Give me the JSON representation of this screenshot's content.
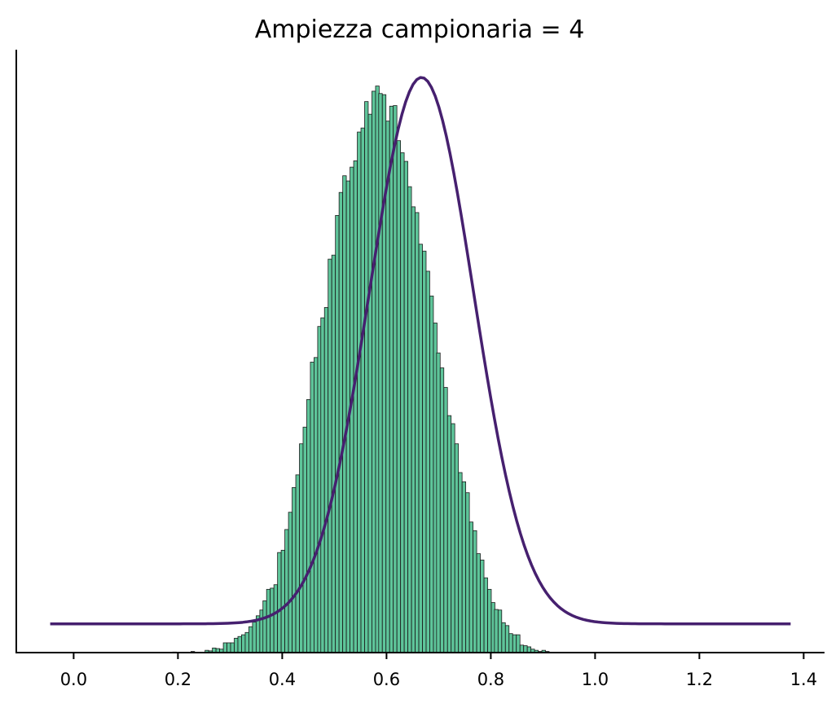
{
  "chart_data": {
    "type": "bar",
    "title": "Ampiezza campionaria = 4",
    "xlabel": "",
    "ylabel": "",
    "xlim": [
      -0.11,
      1.44
    ],
    "xticks": [
      0.0,
      0.2,
      0.4,
      0.6,
      0.8,
      1.0,
      1.2,
      1.4
    ],
    "x_tick_labels": [
      "0.0",
      "0.2",
      "0.4",
      "0.6",
      "0.8",
      "1.0",
      "1.2",
      "1.4"
    ],
    "y_axis_ticks_shown": false,
    "grid": false,
    "legend": "none",
    "histogram": {
      "bin_width": 0.0069,
      "bin_starts": [
        0.19,
        0.197,
        0.204,
        0.211,
        0.218,
        0.225,
        0.232,
        0.239,
        0.246,
        0.252,
        0.259,
        0.266,
        0.273,
        0.28,
        0.287,
        0.294,
        0.301,
        0.308,
        0.315,
        0.322,
        0.329,
        0.336,
        0.343,
        0.35,
        0.357,
        0.363,
        0.37,
        0.377,
        0.384,
        0.391,
        0.398,
        0.405,
        0.412,
        0.419,
        0.426,
        0.433,
        0.44,
        0.447,
        0.454,
        0.461,
        0.468,
        0.474,
        0.481,
        0.488,
        0.495,
        0.502,
        0.509,
        0.516,
        0.523,
        0.53,
        0.537,
        0.544,
        0.551,
        0.558,
        0.565,
        0.572,
        0.579,
        0.585,
        0.592,
        0.599,
        0.606,
        0.613,
        0.62,
        0.627,
        0.634,
        0.641,
        0.648,
        0.655,
        0.662,
        0.669,
        0.676,
        0.683,
        0.69,
        0.696,
        0.703,
        0.71,
        0.717,
        0.724,
        0.731,
        0.738,
        0.745,
        0.752,
        0.759,
        0.766,
        0.773,
        0.78,
        0.787,
        0.794,
        0.801,
        0.807,
        0.814,
        0.821,
        0.828,
        0.835,
        0.842,
        0.849,
        0.856,
        0.863,
        0.87,
        0.877,
        0.884,
        0.891,
        0.898,
        0.905,
        0.912,
        0.918,
        0.925,
        0.932,
        0.939,
        0.946,
        0.953,
        0.96,
        0.967
      ],
      "heights": [
        0.001,
        0,
        0,
        0,
        0,
        0.002,
        0,
        0,
        0,
        0.004,
        0.003,
        0.008,
        0.007,
        0.006,
        0.017,
        0.017,
        0.017,
        0.025,
        0.028,
        0.031,
        0.035,
        0.045,
        0.053,
        0.064,
        0.074,
        0.09,
        0.11,
        0.112,
        0.118,
        0.174,
        0.178,
        0.214,
        0.244,
        0.287,
        0.309,
        0.363,
        0.392,
        0.44,
        0.505,
        0.513,
        0.567,
        0.582,
        0.6,
        0.684,
        0.691,
        0.76,
        0.8,
        0.829,
        0.82,
        0.844,
        0.855,
        0.905,
        0.912,
        0.958,
        0.936,
        0.976,
        0.985,
        0.972,
        0.97,
        0.924,
        0.95,
        0.951,
        0.89,
        0.869,
        0.854,
        0.81,
        0.775,
        0.765,
        0.71,
        0.698,
        0.663,
        0.62,
        0.573,
        0.521,
        0.495,
        0.461,
        0.412,
        0.398,
        0.363,
        0.313,
        0.297,
        0.278,
        0.227,
        0.212,
        0.172,
        0.161,
        0.13,
        0.11,
        0.087,
        0.075,
        0.074,
        0.052,
        0.047,
        0.033,
        0.031,
        0.031,
        0.013,
        0.012,
        0.01,
        0.006,
        0.004,
        0.002,
        0.004,
        0.002,
        0,
        0,
        0,
        0,
        0,
        0,
        0,
        0,
        0
      ]
    },
    "series": [
      {
        "type": "line",
        "x_range": [
          -0.045,
          1.375
        ],
        "mean": 0.667,
        "sd": 0.1,
        "peak_height": 1.0,
        "baseline": 0.05,
        "color": "#46206f"
      }
    ],
    "colors": {
      "bar_fill": "#5ec59a",
      "bar_edge": "#1b1b1b",
      "line": "#46206f",
      "axis": "#000000"
    }
  }
}
